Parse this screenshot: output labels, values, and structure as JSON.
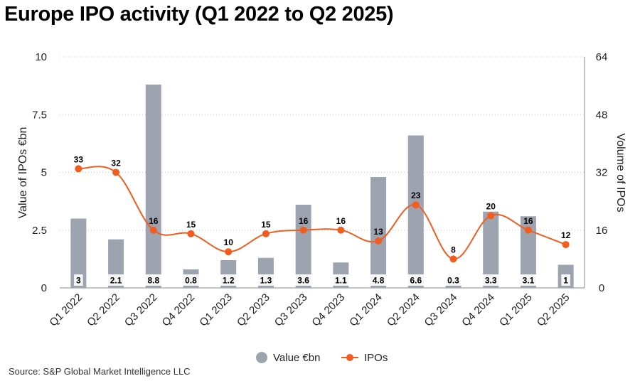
{
  "title": "Europe IPO activity (Q1 2022 to Q2 2025)",
  "source": "Source: S&P Global Market Intelligence LLC",
  "colors": {
    "bar": "#9ea3b0",
    "line": "#f25c1e",
    "grid": "#c8c8c8",
    "axis": "#888888"
  },
  "chart_data": {
    "type": "bar",
    "categories": [
      "Q1 2022",
      "Q2 2022",
      "Q3 2022",
      "Q4 2022",
      "Q1 2023",
      "Q2 2023",
      "Q3 2023",
      "Q4 2023",
      "Q1 2024",
      "Q2 2024",
      "Q3 2024",
      "Q4 2024",
      "Q1 2025",
      "Q2 2025"
    ],
    "series": [
      {
        "name": "Value €bn",
        "type": "bar",
        "axis": "left",
        "values": [
          3,
          2.1,
          8.8,
          0.8,
          1.2,
          1.3,
          3.6,
          1.1,
          4.8,
          6.6,
          0.3,
          3.3,
          3.1,
          1
        ],
        "labels": [
          "3",
          "2.1",
          "8.8",
          "0.8",
          "1.2",
          "1.3",
          "3.6",
          "1.1",
          "4.8",
          "6.6",
          "0.3",
          "3.3",
          "3.1",
          "1"
        ]
      },
      {
        "name": "IPOs",
        "type": "line",
        "axis": "right",
        "values": [
          33,
          32,
          16,
          15,
          10,
          15,
          16,
          16,
          13,
          23,
          8,
          20,
          16,
          12
        ],
        "labels": [
          "33",
          "32",
          "16",
          "15",
          "10",
          "15",
          "16",
          "16",
          "13",
          "23",
          "8",
          "20",
          "16",
          "12"
        ]
      }
    ],
    "ylabel": "Value of IPOs €bn",
    "y2label": "Volume of IPOs",
    "ylim": [
      0,
      10
    ],
    "y2lim": [
      0,
      64
    ],
    "yticks": [
      "0",
      "2.5",
      "5",
      "7.5",
      "10"
    ],
    "yticks_values": [
      0,
      2.5,
      5,
      7.5,
      10
    ],
    "y2ticks": [
      "0",
      "16",
      "32",
      "48",
      "64"
    ],
    "y2ticks_values": [
      0,
      16,
      32,
      48,
      64
    ],
    "grid": true,
    "legend_position": "bottom-center"
  }
}
